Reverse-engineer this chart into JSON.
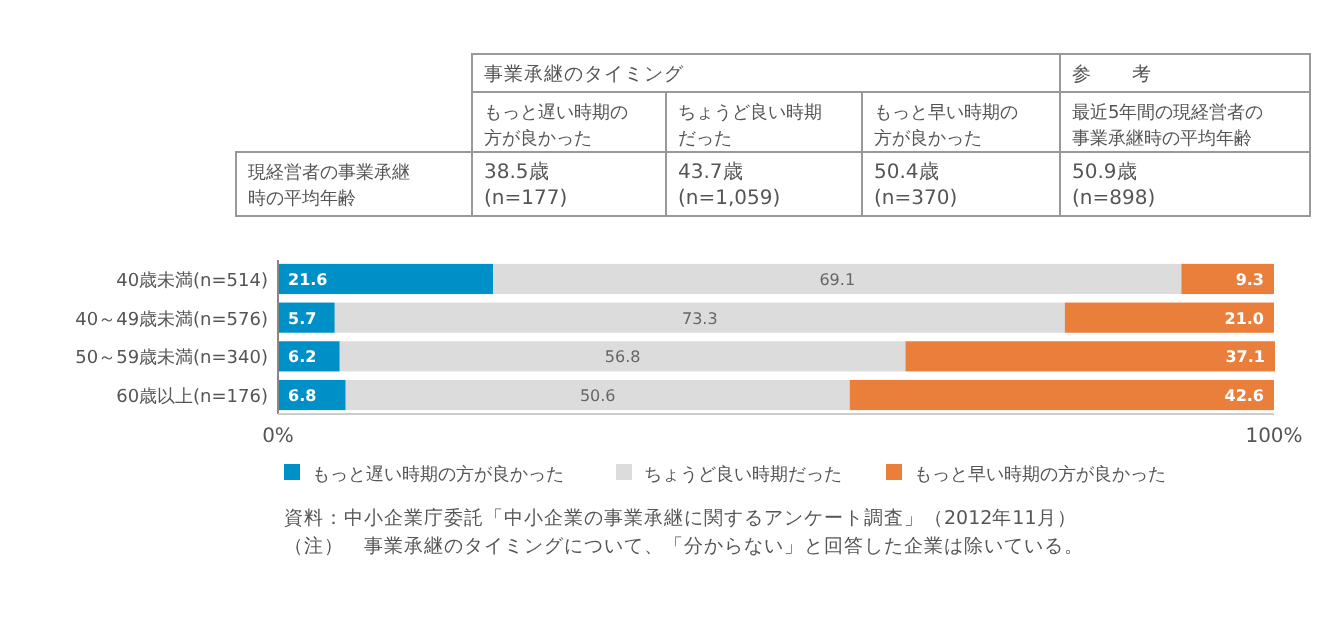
{
  "chart_data": {
    "type": "bar",
    "orientation": "horizontal",
    "stacked": true,
    "categories": [
      "40歳未満(n=514)",
      "40～49歳未満(n=576)",
      "50～59歳未満(n=340)",
      "60歳以上(n=176)"
    ],
    "series": [
      {
        "name": "もっと遅い時期の方が良かった",
        "color": "#0090c8",
        "values": [
          21.6,
          5.7,
          6.2,
          6.8
        ],
        "value_labels": [
          "21.6",
          "5.7",
          "6.2",
          "6.8"
        ]
      },
      {
        "name": "ちょうど良い時期だった",
        "color": "#dcdcdc",
        "values": [
          69.1,
          73.3,
          56.8,
          50.6
        ],
        "value_labels": [
          "69.1",
          "73.3",
          "56.8",
          "50.6"
        ]
      },
      {
        "name": "もっと早い時期の方が良かった",
        "color": "#e97f3a",
        "values": [
          9.3,
          21.0,
          37.1,
          42.6
        ],
        "value_labels": [
          "9.3",
          "21.0",
          "37.1",
          "42.6"
        ]
      }
    ],
    "xlim": [
      0,
      100
    ],
    "xticks": [
      {
        "value": 0,
        "label": "0%"
      },
      {
        "value": 100,
        "label": "100%"
      }
    ],
    "legend": "bottom",
    "annotations": [
      "事業承継のタイミング",
      "参　　考",
      "もっと遅い時期の方が良かった",
      "ちょうど良い時期だった",
      "もっと早い時期の方が良かった",
      "最近5年間の現経営者の事業承継時の平均年齢",
      "現経営者の事業承継時の平均年齢",
      "38.5歳\n(n=177)",
      "43.7歳\n(n=1,059)",
      "50.4歳\n(n=370)",
      "50.9歳\n(n=898)",
      "資料：中小企業庁委託「中小企業の事業承継に関するアンケート調査」（2012年11月）",
      "（注）　事業承継のタイミングについて、「分からない」と回答した企業は除いている。"
    ]
  }
}
